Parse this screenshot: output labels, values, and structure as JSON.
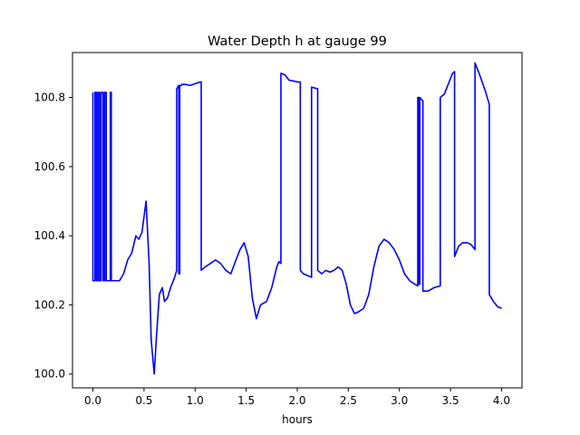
{
  "chart_data": {
    "type": "line",
    "title": "Water Depth h at gauge 99",
    "xlabel": "hours",
    "ylabel": "",
    "xlim": [
      -0.2,
      4.2
    ],
    "ylim": [
      99.96,
      100.93
    ],
    "xticks": [
      0.0,
      0.5,
      1.0,
      1.5,
      2.0,
      2.5,
      3.0,
      3.5,
      4.0
    ],
    "xtick_labels": [
      "0.0",
      "0.5",
      "1.0",
      "1.5",
      "2.0",
      "2.5",
      "3.0",
      "3.5",
      "4.0"
    ],
    "yticks": [
      100.0,
      100.2,
      100.4,
      100.6,
      100.8
    ],
    "ytick_labels": [
      "100.0",
      "100.2",
      "100.4",
      "100.6",
      "100.8"
    ],
    "grid": false,
    "legend": "none",
    "series": [
      {
        "color": "#0000ff",
        "x": [
          0.0,
          0.0,
          0.02,
          0.02,
          0.035,
          0.035,
          0.05,
          0.05,
          0.065,
          0.065,
          0.08,
          0.08,
          0.1,
          0.1,
          0.115,
          0.115,
          0.13,
          0.13,
          0.17,
          0.17,
          0.18,
          0.18,
          0.22,
          0.26,
          0.3,
          0.34,
          0.38,
          0.42,
          0.45,
          0.48,
          0.52,
          0.55,
          0.57,
          0.6,
          0.62,
          0.65,
          0.68,
          0.7,
          0.73,
          0.76,
          0.8,
          0.82,
          0.82,
          0.84,
          0.84,
          0.85,
          0.85,
          0.87,
          0.87,
          0.9,
          0.95,
          1.0,
          1.05,
          1.06,
          1.06,
          1.1,
          1.15,
          1.2,
          1.25,
          1.3,
          1.35,
          1.4,
          1.44,
          1.48,
          1.52,
          1.56,
          1.6,
          1.64,
          1.7,
          1.75,
          1.8,
          1.82,
          1.84,
          1.84,
          1.88,
          1.92,
          1.96,
          2.0,
          2.03,
          2.03,
          2.06,
          2.1,
          2.14,
          2.14,
          2.2,
          2.2,
          2.24,
          2.28,
          2.32,
          2.36,
          2.4,
          2.44,
          2.48,
          2.52,
          2.56,
          2.6,
          2.65,
          2.7,
          2.75,
          2.8,
          2.85,
          2.9,
          2.95,
          3.0,
          3.05,
          3.1,
          3.15,
          3.18,
          3.18,
          3.19,
          3.19,
          3.2,
          3.2,
          3.23,
          3.23,
          3.28,
          3.34,
          3.4,
          3.4,
          3.44,
          3.48,
          3.52,
          3.54,
          3.54,
          3.58,
          3.62,
          3.66,
          3.7,
          3.74,
          3.74,
          3.78,
          3.84,
          3.88,
          3.88,
          3.92,
          3.96,
          4.0
        ],
        "y": [
          100.815,
          100.27,
          100.27,
          100.815,
          100.815,
          100.27,
          100.27,
          100.815,
          100.815,
          100.27,
          100.27,
          100.815,
          100.815,
          100.27,
          100.27,
          100.815,
          100.815,
          100.27,
          100.27,
          100.815,
          100.815,
          100.27,
          100.27,
          100.27,
          100.29,
          100.33,
          100.35,
          100.4,
          100.39,
          100.41,
          100.5,
          100.32,
          100.1,
          100.0,
          100.1,
          100.23,
          100.25,
          100.21,
          100.22,
          100.25,
          100.28,
          100.3,
          100.825,
          100.835,
          100.29,
          100.29,
          100.835,
          100.835,
          100.838,
          100.838,
          100.835,
          100.84,
          100.845,
          100.845,
          100.3,
          100.31,
          100.32,
          100.33,
          100.32,
          100.3,
          100.29,
          100.33,
          100.36,
          100.38,
          100.34,
          100.22,
          100.16,
          100.2,
          100.21,
          100.25,
          100.31,
          100.325,
          100.32,
          100.87,
          100.865,
          100.85,
          100.848,
          100.845,
          100.845,
          100.3,
          100.29,
          100.285,
          100.28,
          100.83,
          100.825,
          100.3,
          100.29,
          100.3,
          100.295,
          100.3,
          100.31,
          100.3,
          100.26,
          100.2,
          100.175,
          100.18,
          100.19,
          100.23,
          100.31,
          100.37,
          100.39,
          100.38,
          100.36,
          100.33,
          100.29,
          100.27,
          100.26,
          100.255,
          100.8,
          100.8,
          100.26,
          100.26,
          100.8,
          100.79,
          100.24,
          100.24,
          100.25,
          100.255,
          100.8,
          100.81,
          100.84,
          100.87,
          100.875,
          100.34,
          100.37,
          100.38,
          100.38,
          100.375,
          100.36,
          100.9,
          100.87,
          100.82,
          100.78,
          100.23,
          100.21,
          100.195,
          100.19
        ]
      }
    ]
  }
}
